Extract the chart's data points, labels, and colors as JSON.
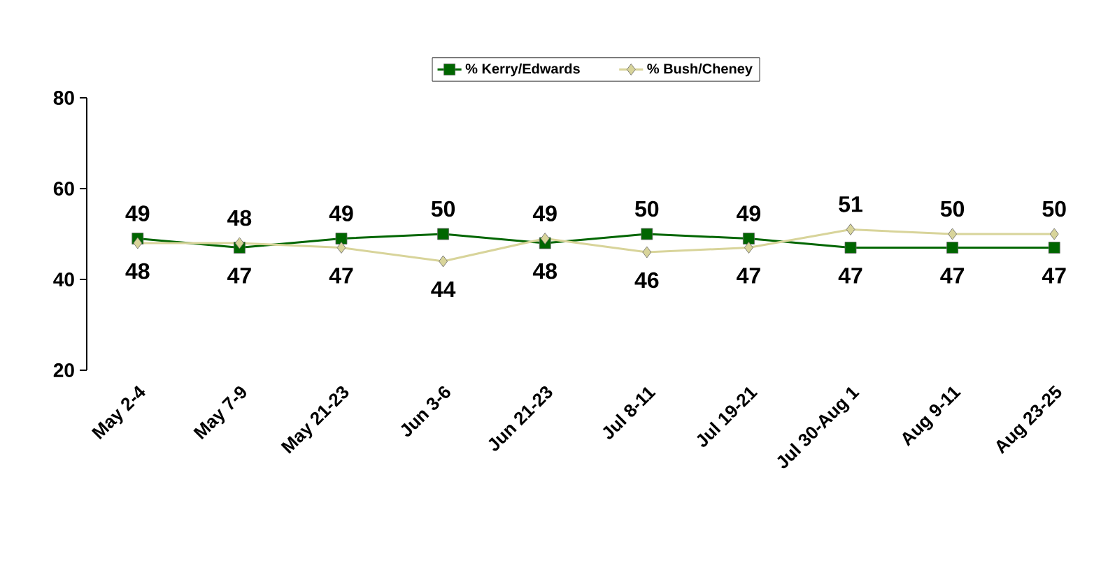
{
  "chart_data": {
    "type": "line",
    "categories": [
      "May 2-4",
      "May 7-9",
      "May 21-23",
      "Jun 3-6",
      "Jun 21-23",
      "Jul 8-11",
      "Jul 19-21",
      "Jul 30-Aug 1",
      "Aug 9-11",
      "Aug 23-25"
    ],
    "series": [
      {
        "name": "% Kerry/Edwards",
        "color": "#006600",
        "marker": "square",
        "values": [
          49,
          47,
          49,
          50,
          48,
          50,
          49,
          47,
          47,
          47
        ]
      },
      {
        "name": "% Bush/Cheney",
        "color": "#d8d49a",
        "marker": "diamond",
        "values": [
          48,
          48,
          47,
          44,
          49,
          46,
          47,
          51,
          50,
          50
        ]
      }
    ],
    "ylim": [
      20,
      80
    ],
    "yticks": [
      20,
      40,
      60,
      80
    ],
    "grid": false,
    "legend": "top",
    "data_labels": true,
    "line_style": "solid"
  }
}
